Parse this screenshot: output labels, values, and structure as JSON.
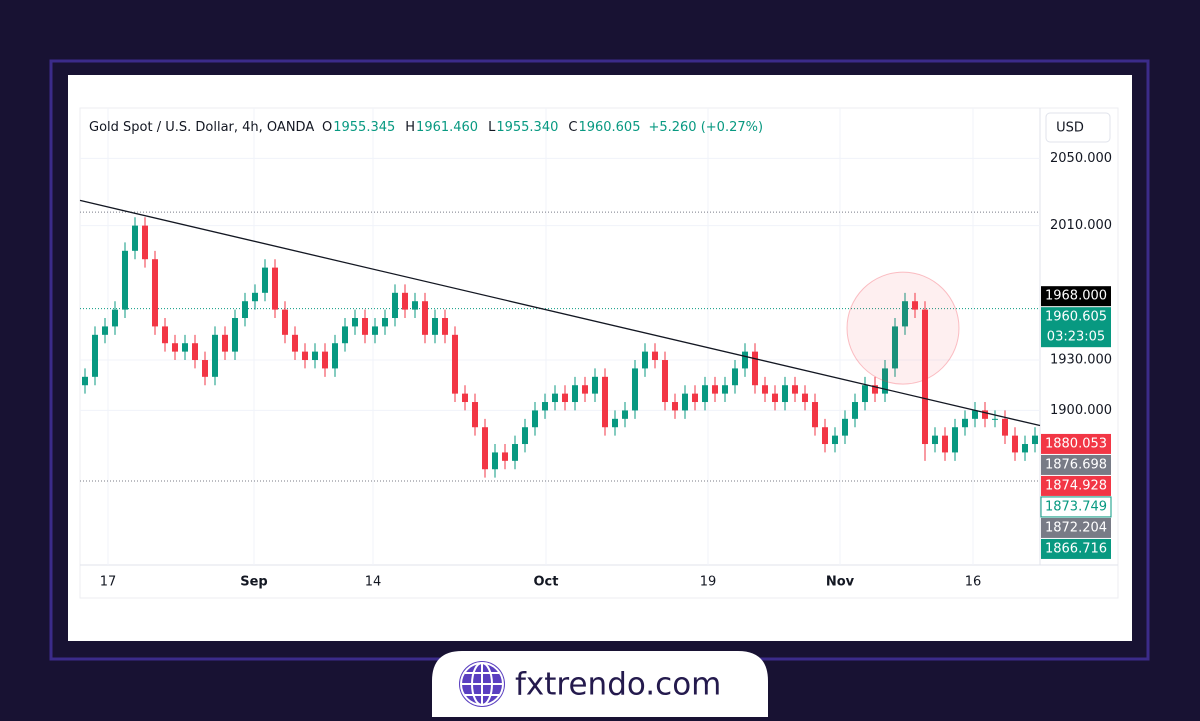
{
  "chart_data": {
    "type": "candlestick",
    "title": "Gold Spot / U.S. Dollar, 4h, OANDA",
    "ohlc_legend": [
      "O",
      "1955.345",
      "H",
      "1961.460",
      "L",
      "1955.340",
      "C",
      "1960.605",
      "+5.260 (+0.27%)"
    ],
    "currency": "USD",
    "brand": "fxtrendo.com",
    "up_color": "#089981",
    "down_color": "#f23645",
    "xlim": [
      0,
      96
    ],
    "xticks": [
      {
        "value": 2.8,
        "label": "17"
      },
      {
        "value": 17.4,
        "label": "Sep"
      },
      {
        "value": 29.3,
        "label": "14"
      },
      {
        "value": 46.6,
        "label": "Oct"
      },
      {
        "value": 62.8,
        "label": "19"
      },
      {
        "value": 76,
        "label": "Nov"
      },
      {
        "value": 89.3,
        "label": "16"
      }
    ],
    "ylim": [
      1808,
      2080
    ],
    "yticks": [
      {
        "value": 1900,
        "label": "1900.000"
      },
      {
        "value": 1930,
        "label": "1930.000"
      },
      {
        "value": 2010,
        "label": "2010.000"
      },
      {
        "value": 2050,
        "label": "2050.000"
      }
    ],
    "grid": true,
    "open": [
      1915,
      1920,
      1945,
      1950,
      1960,
      1995,
      2010,
      1990,
      1950,
      1940,
      1935,
      1940,
      1930,
      1920,
      1945,
      1935,
      1955,
      1965,
      1970,
      1985,
      1960,
      1945,
      1935,
      1930,
      1935,
      1925,
      1940,
      1950,
      1955,
      1945,
      1950,
      1955,
      1970,
      1960,
      1965,
      1945,
      1955,
      1945,
      1910,
      1905,
      1890,
      1865,
      1875,
      1870,
      1880,
      1890,
      1900,
      1905,
      1910,
      1905,
      1915,
      1910,
      1920,
      1890,
      1895,
      1900,
      1925,
      1935,
      1930,
      1905,
      1900,
      1910,
      1905,
      1915,
      1910,
      1915,
      1925,
      1935,
      1915,
      1910,
      1905,
      1915,
      1910,
      1905,
      1890,
      1880,
      1885,
      1895,
      1905,
      1915,
      1910,
      1925,
      1950,
      1965,
      1960,
      1880,
      1885,
      1875,
      1890,
      1895,
      1900,
      1895,
      1895,
      1885,
      1875,
      1880
    ],
    "high": [
      1925,
      1950,
      1955,
      1965,
      2000,
      2015,
      2015,
      1995,
      1955,
      1945,
      1945,
      1945,
      1935,
      1950,
      1950,
      1960,
      1970,
      1975,
      1990,
      1990,
      1965,
      1950,
      1940,
      1940,
      1940,
      1945,
      1955,
      1960,
      1960,
      1955,
      1960,
      1975,
      1975,
      1970,
      1970,
      1960,
      1960,
      1950,
      1915,
      1910,
      1895,
      1880,
      1880,
      1885,
      1895,
      1905,
      1910,
      1915,
      1915,
      1920,
      1920,
      1925,
      1925,
      1900,
      1905,
      1930,
      1940,
      1940,
      1935,
      1910,
      1915,
      1915,
      1920,
      1920,
      1920,
      1930,
      1940,
      1940,
      1920,
      1915,
      1920,
      1920,
      1915,
      1910,
      1895,
      1890,
      1900,
      1910,
      1920,
      1920,
      1930,
      1955,
      1970,
      1970,
      1965,
      1890,
      1890,
      1895,
      1900,
      1905,
      1905,
      1900,
      1900,
      1890,
      1885,
      1890
    ],
    "low": [
      1910,
      1915,
      1940,
      1945,
      1955,
      1990,
      1985,
      1945,
      1935,
      1930,
      1930,
      1925,
      1915,
      1915,
      1930,
      1930,
      1950,
      1960,
      1965,
      1955,
      1940,
      1930,
      1925,
      1925,
      1920,
      1920,
      1935,
      1945,
      1940,
      1940,
      1945,
      1950,
      1955,
      1955,
      1940,
      1940,
      1940,
      1905,
      1900,
      1885,
      1860,
      1860,
      1865,
      1865,
      1875,
      1885,
      1895,
      1900,
      1900,
      1900,
      1905,
      1905,
      1885,
      1885,
      1890,
      1895,
      1920,
      1925,
      1900,
      1895,
      1895,
      1900,
      1900,
      1905,
      1905,
      1910,
      1920,
      1910,
      1905,
      1900,
      1900,
      1905,
      1900,
      1885,
      1875,
      1875,
      1880,
      1890,
      1900,
      1905,
      1905,
      1920,
      1945,
      1955,
      1870,
      1875,
      1870,
      1870,
      1885,
      1890,
      1890,
      1890,
      1880,
      1870,
      1870,
      1875
    ],
    "close": [
      1920,
      1945,
      1950,
      1960,
      1995,
      2010,
      1990,
      1950,
      1940,
      1935,
      1940,
      1930,
      1920,
      1945,
      1935,
      1955,
      1965,
      1970,
      1985,
      1960,
      1945,
      1935,
      1930,
      1935,
      1925,
      1940,
      1950,
      1955,
      1945,
      1950,
      1955,
      1970,
      1960,
      1965,
      1945,
      1955,
      1945,
      1910,
      1905,
      1890,
      1865,
      1875,
      1870,
      1880,
      1890,
      1900,
      1905,
      1910,
      1905,
      1915,
      1910,
      1920,
      1890,
      1895,
      1900,
      1925,
      1935,
      1930,
      1905,
      1900,
      1910,
      1905,
      1915,
      1910,
      1915,
      1925,
      1935,
      1915,
      1910,
      1905,
      1915,
      1910,
      1905,
      1890,
      1880,
      1885,
      1895,
      1905,
      1915,
      1910,
      1925,
      1950,
      1965,
      1960,
      1880,
      1885,
      1875,
      1890,
      1895,
      1900,
      1895,
      1895,
      1885,
      1875,
      1880,
      1885
    ],
    "hlines": [
      2018,
      1858
    ],
    "current_price": 1960.605,
    "trendline": {
      "x": [
        0,
        96
      ],
      "y": [
        2025,
        1891
      ]
    },
    "highlight": {
      "x": 82.3,
      "y": 1949
    },
    "price_tags": [
      {
        "value": 1968,
        "label": "1968.000",
        "color": "#000000"
      },
      {
        "value": 1960.605,
        "label": "1960.605",
        "color": "#089981",
        "sub": "03:23:05"
      },
      {
        "value": 1880.053,
        "label": "1880.053",
        "color": "#f23645"
      },
      {
        "value": 1876.698,
        "label": "1876.698",
        "color": "#787b86"
      },
      {
        "value": 1874.928,
        "label": "1874.928",
        "color": "#f23645"
      },
      {
        "value": 1873.749,
        "label": "1873.749",
        "color": "#ffffff"
      },
      {
        "value": 1872.204,
        "label": "1872.204",
        "color": "#787b86"
      },
      {
        "value": 1866.716,
        "label": "1866.716",
        "color": "#089981"
      }
    ]
  }
}
